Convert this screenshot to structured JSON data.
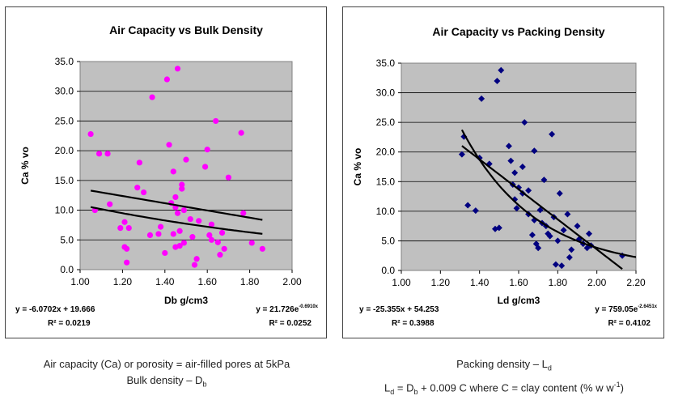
{
  "chart_data": [
    {
      "type": "scatter",
      "title": "Air Capacity vs Bulk Density",
      "xlabel": "Db g/cm3",
      "ylabel": "Ca % vo",
      "xlim": [
        1.0,
        2.0
      ],
      "ylim": [
        0,
        35
      ],
      "xticks": [
        "1.00",
        "1.20",
        "1.40",
        "1.60",
        "1.80",
        "2.00"
      ],
      "yticks": [
        "0.0",
        "5.0",
        "10.0",
        "15.0",
        "20.0",
        "25.0",
        "30.0",
        "35.0"
      ],
      "grid": true,
      "marker": "circle",
      "color": "#ff00ff",
      "plot_bg": "#c0c0c0",
      "series": [
        {
          "points": [
            [
              1.05,
              22.8
            ],
            [
              1.07,
              10.0
            ],
            [
              1.09,
              19.5
            ],
            [
              1.13,
              19.5
            ],
            [
              1.14,
              11.0
            ],
            [
              1.19,
              7.0
            ],
            [
              1.21,
              8.0
            ],
            [
              1.21,
              3.8
            ],
            [
              1.22,
              3.5
            ],
            [
              1.22,
              1.2
            ],
            [
              1.23,
              7.0
            ],
            [
              1.27,
              13.8
            ],
            [
              1.28,
              18.0
            ],
            [
              1.3,
              13.0
            ],
            [
              1.33,
              5.8
            ],
            [
              1.34,
              29.0
            ],
            [
              1.37,
              6.0
            ],
            [
              1.38,
              7.2
            ],
            [
              1.4,
              2.8
            ],
            [
              1.41,
              32.0
            ],
            [
              1.42,
              21.0
            ],
            [
              1.43,
              11.2
            ],
            [
              1.44,
              16.5
            ],
            [
              1.44,
              6.0
            ],
            [
              1.45,
              10.5
            ],
            [
              1.45,
              12.2
            ],
            [
              1.45,
              3.8
            ],
            [
              1.46,
              33.8
            ],
            [
              1.46,
              9.5
            ],
            [
              1.47,
              6.5
            ],
            [
              1.47,
              4.0
            ],
            [
              1.48,
              14.3
            ],
            [
              1.48,
              13.6
            ],
            [
              1.49,
              10.0
            ],
            [
              1.49,
              4.5
            ],
            [
              1.5,
              18.5
            ],
            [
              1.52,
              8.5
            ],
            [
              1.53,
              5.5
            ],
            [
              1.54,
              0.8
            ],
            [
              1.55,
              1.8
            ],
            [
              1.56,
              8.2
            ],
            [
              1.59,
              17.3
            ],
            [
              1.6,
              20.2
            ],
            [
              1.61,
              5.8
            ],
            [
              1.62,
              7.6
            ],
            [
              1.62,
              5.0
            ],
            [
              1.64,
              25.0
            ],
            [
              1.65,
              4.6
            ],
            [
              1.66,
              2.5
            ],
            [
              1.67,
              6.2
            ],
            [
              1.68,
              3.5
            ],
            [
              1.7,
              15.5
            ],
            [
              1.76,
              23.0
            ],
            [
              1.77,
              9.5
            ],
            [
              1.81,
              4.5
            ],
            [
              1.86,
              3.5
            ]
          ]
        }
      ],
      "trendlines": [
        {
          "kind": "linear",
          "slope": -6.0702,
          "intercept": 19.666,
          "x_range": [
            1.05,
            1.86
          ]
        },
        {
          "kind": "exponential",
          "a": 21.726,
          "b": -0.69,
          "x_range": [
            1.05,
            1.86
          ]
        }
      ],
      "equations": {
        "left_line1": "y = -6.0702x + 19.666",
        "left_line2": "R² = 0.0219",
        "right_line1": "y = 21.726e",
        "right_exp": "-0.6910x",
        "right_line2": "R² = 0.0252"
      }
    },
    {
      "type": "scatter",
      "title": "Air Capacity vs Packing Density",
      "xlabel": "Ld g/cm3",
      "ylabel": "Ca % vo",
      "xlim": [
        1.0,
        2.2
      ],
      "ylim": [
        0,
        35
      ],
      "xticks": [
        "1.00",
        "1.20",
        "1.40",
        "1.60",
        "1.80",
        "2.00",
        "2.20"
      ],
      "yticks": [
        "0.0",
        "5.0",
        "10.0",
        "15.0",
        "20.0",
        "25.0",
        "30.0",
        "35.0"
      ],
      "grid": true,
      "marker": "diamond",
      "color": "#000080",
      "plot_bg": "#c0c0c0",
      "series": [
        {
          "points": [
            [
              1.31,
              19.6
            ],
            [
              1.32,
              22.6
            ],
            [
              1.34,
              11.0
            ],
            [
              1.38,
              10.1
            ],
            [
              1.4,
              19.0
            ],
            [
              1.41,
              29.0
            ],
            [
              1.45,
              18.0
            ],
            [
              1.48,
              7.0
            ],
            [
              1.49,
              32.0
            ],
            [
              1.5,
              7.2
            ],
            [
              1.51,
              33.8
            ],
            [
              1.55,
              21.0
            ],
            [
              1.56,
              18.5
            ],
            [
              1.57,
              14.5
            ],
            [
              1.58,
              16.5
            ],
            [
              1.58,
              12.0
            ],
            [
              1.59,
              10.5
            ],
            [
              1.6,
              14.0
            ],
            [
              1.62,
              17.5
            ],
            [
              1.62,
              13.0
            ],
            [
              1.63,
              25.0
            ],
            [
              1.65,
              9.5
            ],
            [
              1.65,
              13.5
            ],
            [
              1.67,
              6.0
            ],
            [
              1.68,
              20.2
            ],
            [
              1.68,
              8.5
            ],
            [
              1.69,
              4.5
            ],
            [
              1.7,
              3.8
            ],
            [
              1.71,
              10.2
            ],
            [
              1.72,
              8.0
            ],
            [
              1.73,
              15.3
            ],
            [
              1.74,
              7.5
            ],
            [
              1.75,
              6.2
            ],
            [
              1.76,
              5.8
            ],
            [
              1.77,
              23.0
            ],
            [
              1.78,
              9.0
            ],
            [
              1.79,
              1.0
            ],
            [
              1.8,
              5.0
            ],
            [
              1.81,
              13.0
            ],
            [
              1.82,
              0.8
            ],
            [
              1.83,
              6.8
            ],
            [
              1.85,
              9.5
            ],
            [
              1.86,
              2.2
            ],
            [
              1.87,
              3.5
            ],
            [
              1.9,
              7.5
            ],
            [
              1.91,
              5.3
            ],
            [
              1.93,
              4.5
            ],
            [
              1.95,
              3.8
            ],
            [
              1.96,
              6.2
            ],
            [
              1.97,
              4.2
            ],
            [
              2.13,
              2.5
            ]
          ]
        }
      ],
      "trendlines": [
        {
          "kind": "linear",
          "slope": -25.355,
          "intercept": 54.253,
          "x_range": [
            1.31,
            2.13
          ]
        },
        {
          "kind": "exponential",
          "a": 759.05,
          "b": -2.6451,
          "x_range": [
            1.31,
            2.2
          ]
        }
      ],
      "equations": {
        "left_line1": "y = -25.355x + 54.253",
        "left_line2": "R² = 0.3988",
        "right_line1": "y = 759.05e",
        "right_exp": "-2.6451x",
        "right_line2": "R² = 0.4102"
      }
    }
  ],
  "captions": {
    "left": {
      "line1": "Air capacity (Ca) or porosity = air-filled pores at 5kPa",
      "line2_main": "Bulk density – D",
      "line2_sub": "b"
    },
    "right": {
      "line1_main": "Packing density – L",
      "line1_sub": "d",
      "line2_a": "L",
      "line2_a_sub": "d",
      "line2_b": " = D",
      "line2_b_sub": "b",
      "line2_c": " + 0.009 C where C = clay content (% w w",
      "line2_sup": "-1",
      "line2_d": ")"
    }
  }
}
